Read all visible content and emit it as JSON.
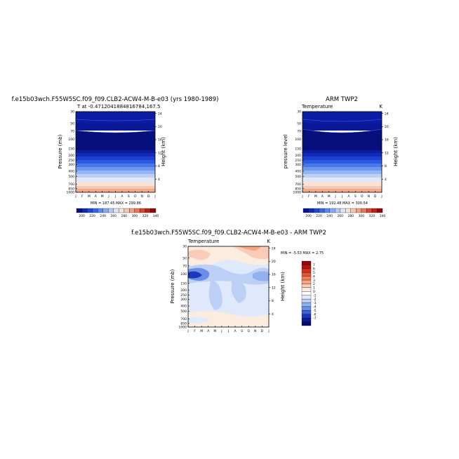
{
  "panels": {
    "model": {
      "title": "f.e15b03wch.F55W5SC.f09_f09.CLB2-ACW4-M-B-e03 (yrs 1980-1989)",
      "subtitle": "T at -0.4712041884816784,167.5",
      "ylabel": "Pressure (mb)",
      "ylabel_right": "Height (km)",
      "stats": "MIN = 187.45 MAX = 299.86"
    },
    "obs": {
      "title": "ARM TWP2",
      "subtitle_left": "Temperature",
      "subtitle_right": "K",
      "ylabel": "pressure level",
      "ylabel_right": "Height (km)",
      "stats": "MIN = 192.48 MAX = 300.54"
    },
    "diff": {
      "title": "f.e15b03wch.F55W5SC.f09_f09.CLB2-ACW4-M-B-e03 - ARM TWP2",
      "subtitle_left": "Temperature",
      "subtitle_right": "K",
      "ylabel": "Pressure (mb)",
      "ylabel_right": "Height (km)",
      "stats": "MIN =   -5.53 MAX =    2.75"
    }
  },
  "axes": {
    "month_ticks": [
      "J",
      "F",
      "M",
      "A",
      "M",
      "J",
      "J",
      "A",
      "S",
      "O",
      "N",
      "D",
      "J"
    ],
    "pressure_ticks": [
      "30",
      "50",
      "70",
      "100",
      "150",
      "200",
      "250",
      "300",
      "400",
      "500",
      "700",
      "850",
      "1000"
    ],
    "height_ticks": [
      "24",
      "20",
      "16",
      "12",
      "8",
      "4"
    ]
  },
  "colorbars": {
    "abs_labels": [
      "200",
      "220",
      "240",
      "260",
      "280",
      "300",
      "320",
      "340"
    ],
    "abs_colors": [
      "#08128c",
      "#0a2ab8",
      "#1f46d6",
      "#3466e6",
      "#5a8aee",
      "#85a9f2",
      "#b2c9f6",
      "#d9e4f8",
      "#f7e4da",
      "#f6c7b0",
      "#f2a185",
      "#ea7559",
      "#d9452f",
      "#bf1f1a",
      "#8f0b0b"
    ],
    "diff_labels": [
      "7",
      "6",
      "5",
      "4",
      "3",
      "2",
      "1",
      "0",
      "-1",
      "-2",
      "-3",
      "-4",
      "-5",
      "-6",
      "-7"
    ],
    "diff_colors": [
      "#8c0a0a",
      "#b4160f",
      "#d2301e",
      "#e45538",
      "#f07d5a",
      "#f6a585",
      "#f9ccb7",
      "#fcebdf",
      "#ffffff",
      "#dfe9fb",
      "#bcd0f6",
      "#93b1f0",
      "#6a8fe7",
      "#3f61d8",
      "#1d37bc",
      "#0c1b9a",
      "#050c6c"
    ]
  },
  "chart_data": [
    {
      "type": "heatmap",
      "title": "f.e15b03wch.F55W5SC.f09_f09.CLB2-ACW4-M-B-e03 (yrs 1980-1989)",
      "subtitle": "T at -0.4712041884816784,167.5",
      "x_categories": [
        "J",
        "F",
        "M",
        "A",
        "M",
        "J",
        "J",
        "A",
        "S",
        "O",
        "N",
        "D",
        "J"
      ],
      "y_levels_mb": [
        30,
        50,
        70,
        100,
        150,
        200,
        250,
        300,
        400,
        500,
        700,
        850,
        1000
      ],
      "ylabel": "Pressure (mb)",
      "ylabel_right": "Height (km)",
      "y_log_scale": true,
      "ylim": [
        30,
        1000
      ],
      "values_K": [
        [
          215,
          215,
          215,
          215,
          216,
          216,
          216,
          216,
          215,
          215,
          215,
          215,
          215
        ],
        [
          206,
          206,
          206,
          206,
          205,
          205,
          205,
          205,
          205,
          206,
          206,
          206,
          206
        ],
        [
          199,
          199,
          198,
          198,
          197,
          196,
          196,
          196,
          197,
          198,
          199,
          199,
          199
        ],
        [
          191,
          190,
          190,
          190,
          189,
          188,
          188,
          188,
          189,
          190,
          190,
          191,
          191
        ],
        [
          207,
          207,
          207,
          207,
          207,
          207,
          207,
          207,
          207,
          207,
          207,
          207,
          207
        ],
        [
          222,
          222,
          222,
          222,
          222,
          222,
          222,
          222,
          222,
          222,
          222,
          222,
          222
        ],
        [
          233,
          233,
          233,
          233,
          233,
          233,
          233,
          233,
          233,
          233,
          233,
          233,
          233
        ],
        [
          243,
          243,
          243,
          243,
          243,
          243,
          243,
          243,
          243,
          243,
          243,
          243,
          243
        ],
        [
          258,
          258,
          258,
          258,
          258,
          258,
          258,
          258,
          258,
          258,
          258,
          258,
          258
        ],
        [
          268,
          268,
          268,
          268,
          268,
          268,
          268,
          268,
          268,
          268,
          268,
          268,
          268
        ],
        [
          283,
          283,
          283,
          283,
          283,
          283,
          283,
          283,
          283,
          283,
          283,
          283,
          283
        ],
        [
          291,
          291,
          291,
          291,
          291,
          291,
          291,
          291,
          291,
          291,
          291,
          291,
          291
        ],
        [
          299,
          299,
          299,
          299,
          299,
          299,
          299,
          299,
          299,
          299,
          299,
          299,
          299
        ]
      ],
      "min": 187.45,
      "max": 299.86,
      "colorbar_ticks": [
        200,
        220,
        240,
        260,
        280,
        300,
        320,
        340
      ]
    },
    {
      "type": "heatmap",
      "title": "ARM TWP2",
      "subtitle": "Temperature",
      "units": "K",
      "x_categories": [
        "J",
        "F",
        "M",
        "A",
        "M",
        "J",
        "J",
        "A",
        "S",
        "O",
        "N",
        "D",
        "J"
      ],
      "y_levels_mb": [
        30,
        50,
        70,
        100,
        150,
        200,
        250,
        300,
        400,
        500,
        700,
        850,
        1000
      ],
      "ylabel": "pressure level",
      "ylabel_right": "Height (km)",
      "y_log_scale": true,
      "ylim": [
        30,
        1000
      ],
      "values_K": [
        [
          214,
          214,
          214,
          214,
          215,
          216,
          216,
          216,
          215,
          215,
          214,
          214,
          214
        ],
        [
          207,
          207,
          206,
          206,
          205,
          205,
          205,
          205,
          205,
          206,
          206,
          207,
          207
        ],
        [
          200,
          199,
          198,
          198,
          197,
          196,
          196,
          196,
          197,
          198,
          199,
          200,
          200
        ],
        [
          195,
          194,
          193,
          193,
          192,
          193,
          193,
          193,
          193,
          194,
          194,
          195,
          195
        ],
        [
          206,
          206,
          206,
          206,
          206,
          206,
          206,
          206,
          206,
          206,
          206,
          206,
          206
        ],
        [
          221,
          221,
          221,
          221,
          221,
          221,
          221,
          221,
          221,
          221,
          221,
          221,
          221
        ],
        [
          232,
          232,
          232,
          232,
          232,
          232,
          232,
          232,
          232,
          232,
          232,
          232,
          232
        ],
        [
          242,
          242,
          242,
          242,
          242,
          242,
          242,
          242,
          242,
          242,
          242,
          242,
          242
        ],
        [
          257,
          257,
          257,
          257,
          257,
          257,
          257,
          257,
          257,
          257,
          257,
          257,
          257
        ],
        [
          268,
          268,
          268,
          268,
          268,
          268,
          268,
          268,
          268,
          268,
          268,
          268,
          268
        ],
        [
          283,
          283,
          283,
          283,
          283,
          283,
          283,
          283,
          283,
          283,
          283,
          283,
          283
        ],
        [
          292,
          292,
          292,
          292,
          292,
          292,
          292,
          292,
          292,
          292,
          292,
          292,
          292
        ],
        [
          300,
          300,
          300,
          300,
          300,
          300,
          300,
          300,
          300,
          300,
          300,
          300,
          300
        ]
      ],
      "min": 192.48,
      "max": 300.54,
      "colorbar_ticks": [
        200,
        220,
        240,
        260,
        280,
        300,
        320,
        340
      ]
    },
    {
      "type": "heatmap",
      "title": "f.e15b03wch.F55W5SC.f09_f09.CLB2-ACW4-M-B-e03 - ARM TWP2",
      "subtitle": "Temperature",
      "units": "K",
      "x_categories": [
        "J",
        "F",
        "M",
        "A",
        "M",
        "J",
        "J",
        "A",
        "S",
        "O",
        "N",
        "D",
        "J"
      ],
      "y_levels_mb": [
        30,
        50,
        70,
        100,
        150,
        200,
        250,
        300,
        400,
        500,
        700,
        850,
        1000
      ],
      "ylabel": "Pressure (mb)",
      "ylabel_right": "Height (km)",
      "y_log_scale": true,
      "ylim": [
        30,
        1000
      ],
      "values_K": [
        [
          1,
          1,
          1,
          1,
          0,
          1,
          1,
          2,
          2,
          2,
          2,
          1,
          1
        ],
        [
          -1,
          -1,
          0,
          0,
          0,
          0,
          0,
          1,
          1,
          1,
          0,
          -1,
          -1
        ],
        [
          -2,
          -1,
          -1,
          0,
          -1,
          -1,
          0,
          0,
          0,
          0,
          -1,
          -2,
          -2
        ],
        [
          -4,
          -3,
          -2,
          -1,
          -2,
          -3,
          -2,
          -2,
          -2,
          -2,
          -3,
          -4,
          -4
        ],
        [
          -1,
          -1,
          -1,
          -2,
          -2,
          -2,
          -1,
          -1,
          -1,
          -1,
          -1,
          -1,
          -1
        ],
        [
          -1,
          -1,
          -1,
          -1,
          -2,
          -2,
          -1,
          -1,
          -1,
          -1,
          -1,
          -1,
          -1
        ],
        [
          -1,
          -1,
          -1,
          -1,
          -2,
          -1,
          -1,
          -1,
          -1,
          -1,
          -1,
          -1,
          -1
        ],
        [
          -1,
          -1,
          -1,
          -1,
          -1,
          -1,
          -1,
          -1,
          -1,
          -1,
          -1,
          -1,
          -1
        ],
        [
          -1,
          0,
          -1,
          -1,
          -1,
          -1,
          -1,
          -1,
          -1,
          -1,
          -1,
          -1,
          -1
        ],
        [
          0,
          0,
          -1,
          -1,
          -1,
          -1,
          0,
          -1,
          -1,
          0,
          0,
          0,
          0
        ],
        [
          0,
          0,
          0,
          0,
          -1,
          0,
          0,
          0,
          0,
          0,
          0,
          0,
          0
        ],
        [
          -1,
          -1,
          -1,
          -1,
          -1,
          -1,
          -1,
          -1,
          -1,
          -1,
          -1,
          -1,
          -1
        ],
        [
          0,
          0,
          0,
          0,
          0,
          0,
          0,
          0,
          0,
          0,
          0,
          0,
          0
        ]
      ],
      "min": -5.53,
      "max": 2.75,
      "colorbar_ticks": [
        7,
        6,
        5,
        4,
        3,
        2,
        1,
        0,
        -1,
        -2,
        -3,
        -4,
        -5,
        -6,
        -7
      ]
    }
  ]
}
